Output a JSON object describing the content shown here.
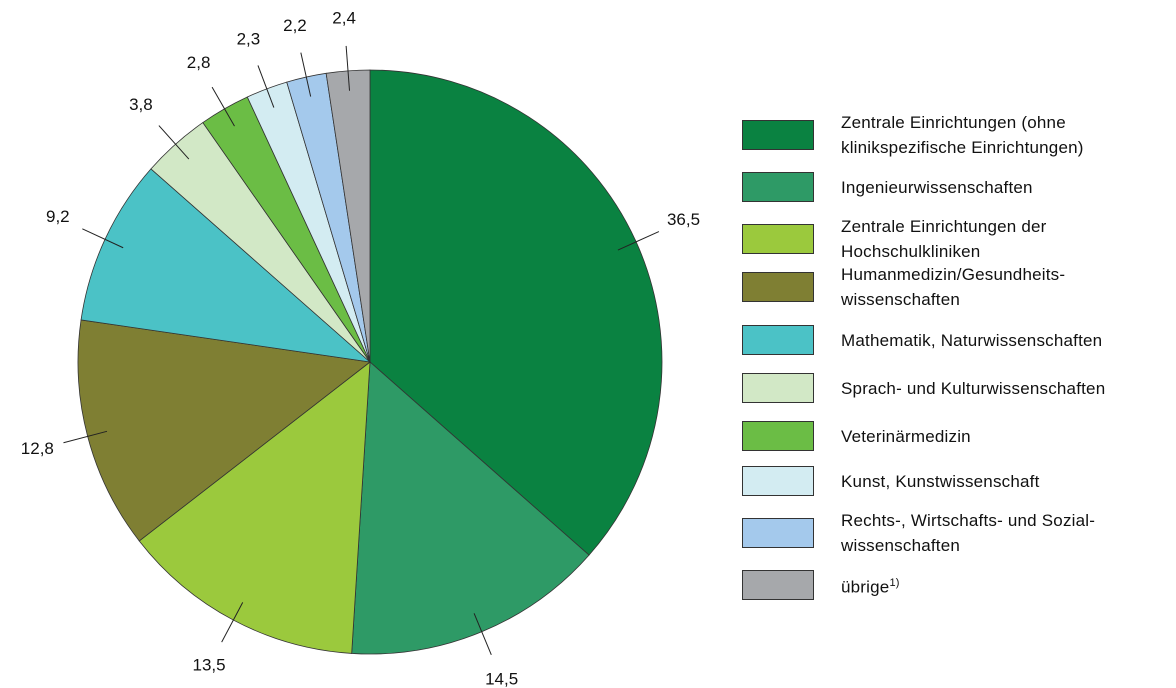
{
  "chart_data": {
    "type": "pie",
    "categories": [
      "Zentrale Einrichtungen (ohne\nklinikspezifische Einrichtungen)",
      "Ingenieurwissenschaften",
      "Zentrale Einrichtungen der\nHochschulkliniken",
      "Humanmedizin/Gesundheits-\nwissenschaften",
      "Mathematik, Naturwissenschaften",
      "Sprach- und Kulturwissenschaften",
      "Veterinärmedizin",
      "Kunst, Kunstwissenschaft",
      "Rechts-, Wirtschafts- und Sozial-\nwissenschaften",
      "übrige"
    ],
    "legend_note": "1)",
    "values": [
      36.5,
      14.5,
      13.5,
      12.8,
      9.2,
      3.8,
      2.8,
      2.3,
      2.2,
      2.4
    ],
    "value_labels": [
      "36,5",
      "14,5",
      "13,5",
      "12,8",
      "9,2",
      "3,8",
      "2,8",
      "2,3",
      "2,2",
      "2,4"
    ],
    "colors": [
      "#0a8241",
      "#2e9a66",
      "#9bc93d",
      "#7f7f33",
      "#4bc2c6",
      "#d2e8c6",
      "#6bbd45",
      "#d3ecf2",
      "#a4c9ec",
      "#a6a8ab"
    ],
    "legend": "right"
  }
}
